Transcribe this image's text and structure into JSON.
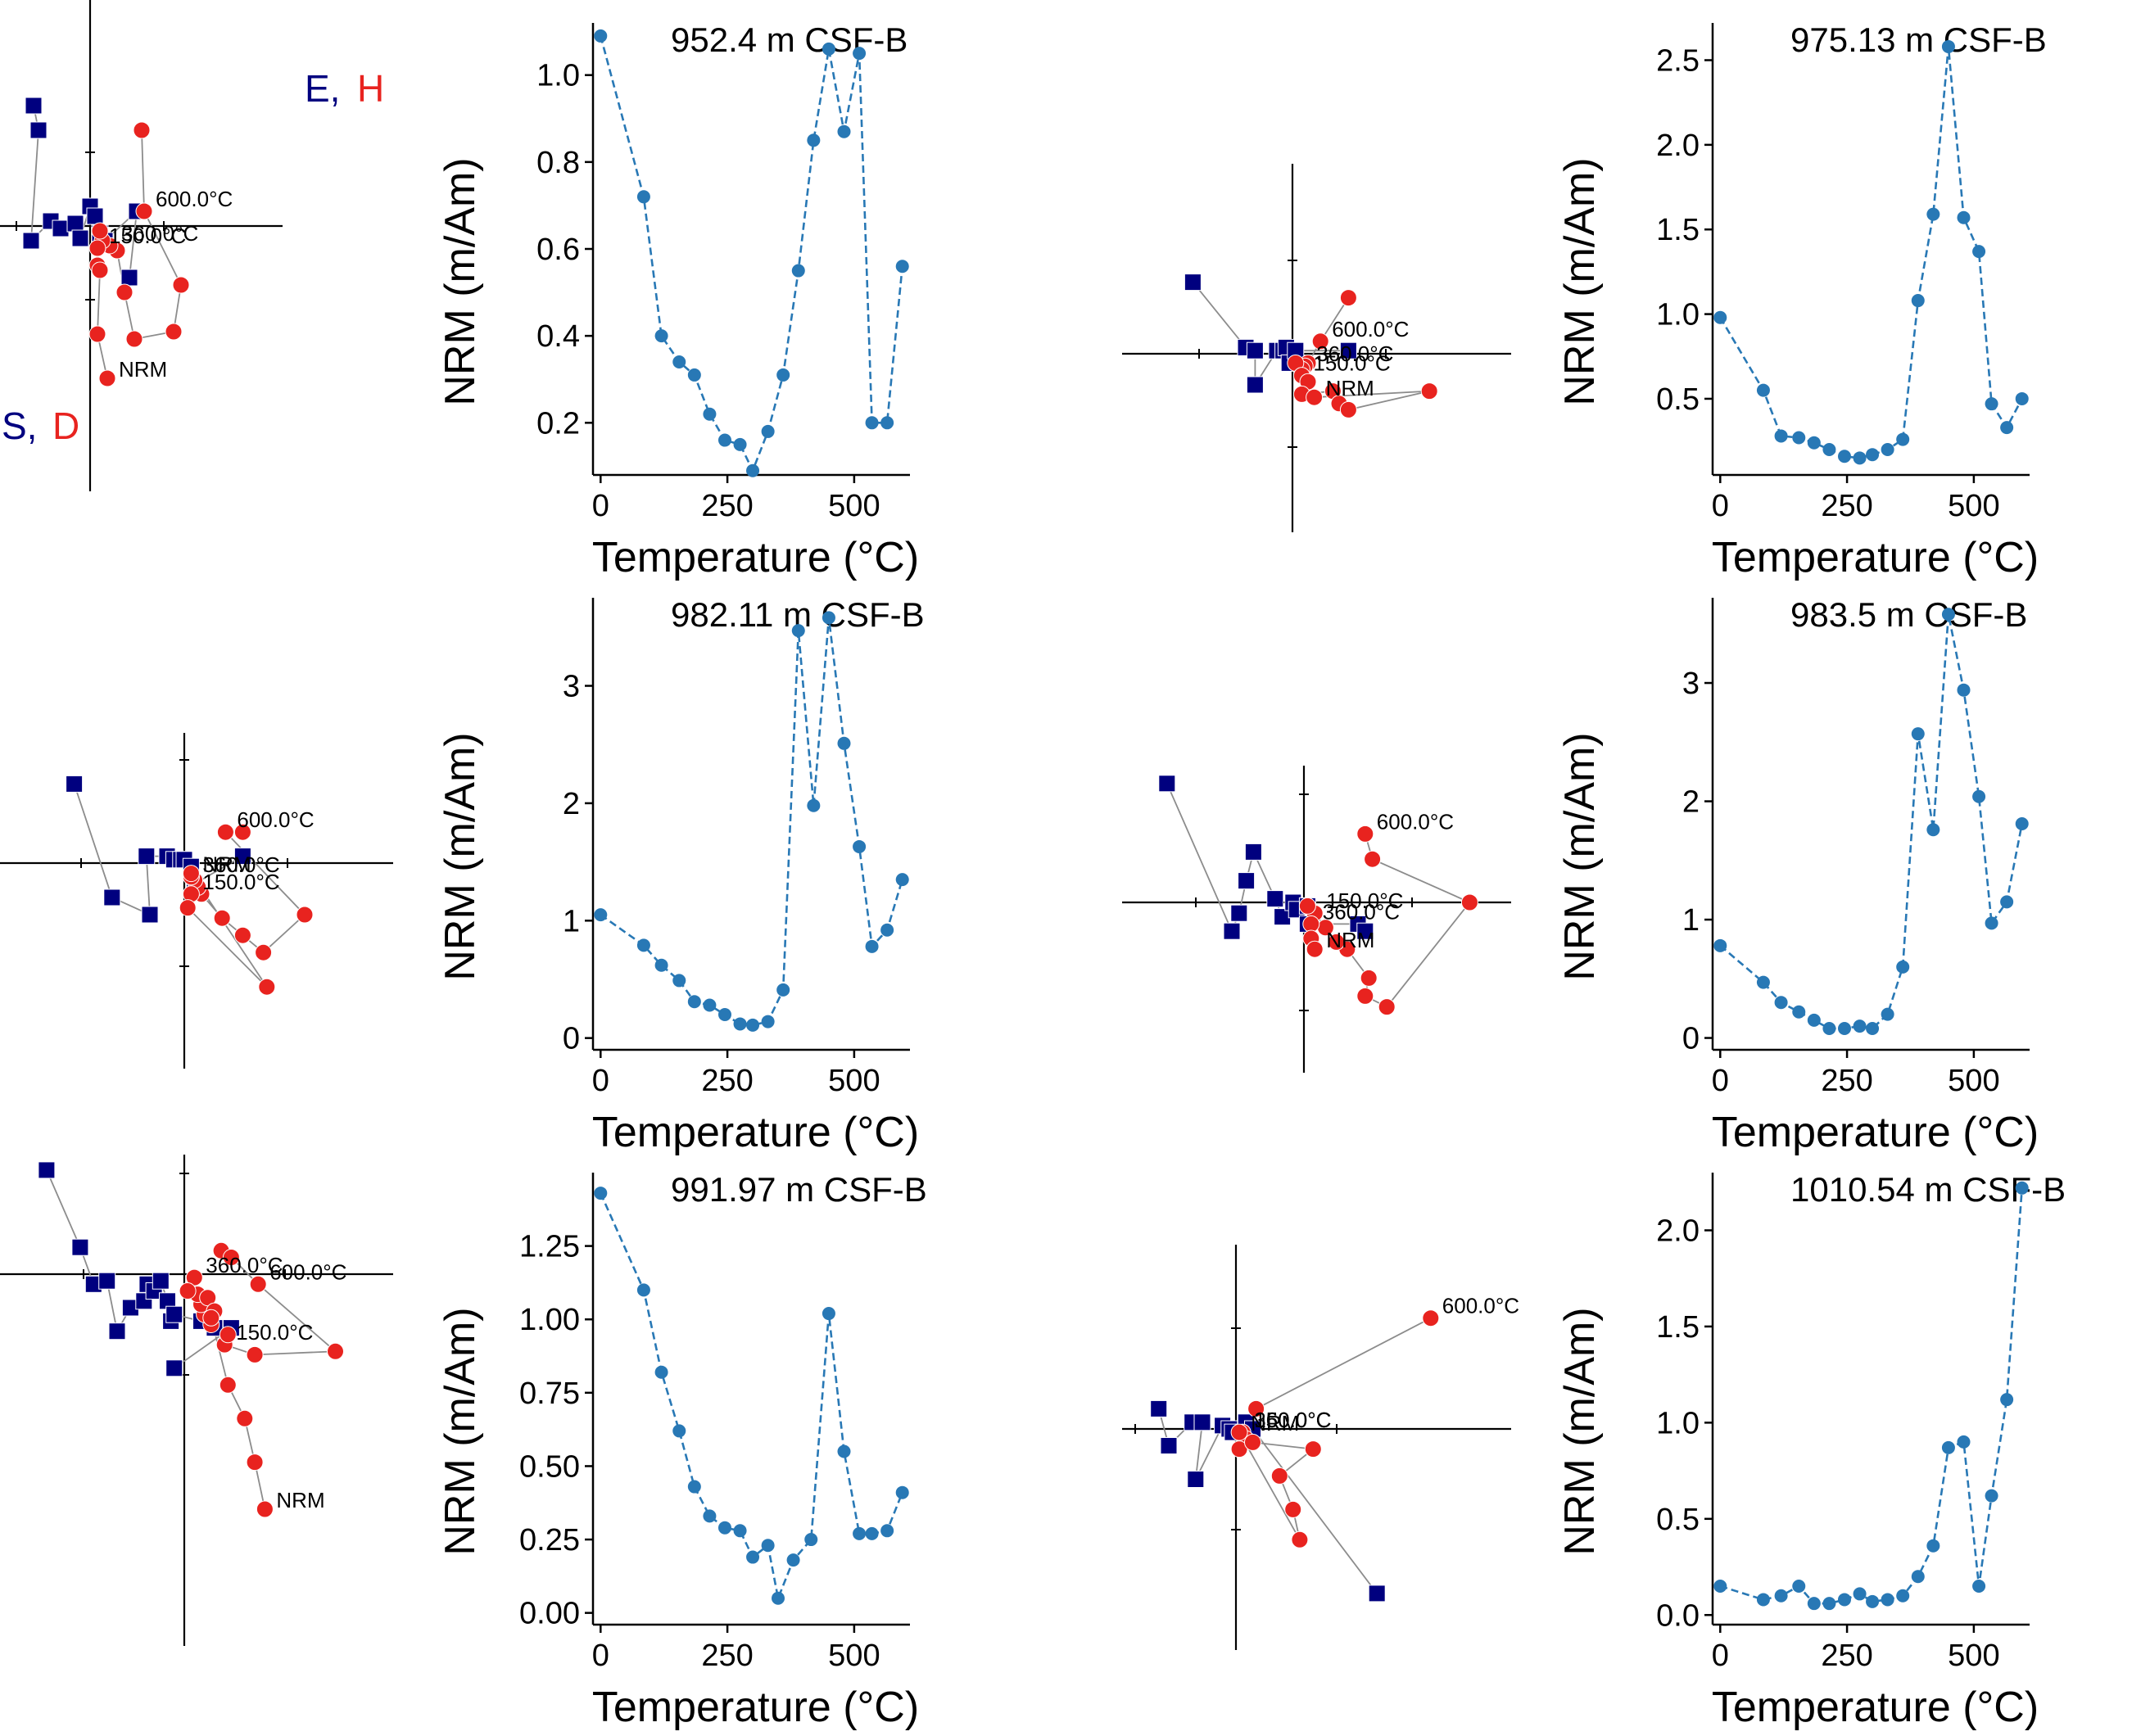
{
  "labels": {
    "xlabel": "Temperature (°C)",
    "ylabel": "NRM (m/Am)",
    "zij_E": "E,",
    "zij_H": "H",
    "zij_S": "S,",
    "zij_D": "D",
    "nrm": "NRM"
  },
  "colors": {
    "line": "#2878b5",
    "horizontal": "#00007f",
    "vertical": "#e8231f",
    "connector": "#8c8c8c"
  },
  "chart_data": [
    {
      "type": "line",
      "title": "952.4 m CSF-B",
      "xlabel": "Temperature (°C)",
      "ylabel": "NRM (m/Am)",
      "x": [
        0,
        85,
        120,
        155,
        185,
        215,
        245,
        275,
        300,
        330,
        360,
        390,
        420,
        450,
        480,
        510,
        535,
        565,
        595
      ],
      "y": [
        1.09,
        0.72,
        0.4,
        0.34,
        0.31,
        0.22,
        0.16,
        0.15,
        0.09,
        0.18,
        0.31,
        0.55,
        0.85,
        1.06,
        0.87,
        1.05,
        0.2,
        0.2,
        0.56
      ],
      "xlim": [
        -15,
        610
      ],
      "ylim": [
        0.08,
        1.12
      ],
      "yticks": [
        0.2,
        0.4,
        0.6,
        0.8,
        1.0
      ],
      "ytick_labels": [
        "0.2",
        "0.4",
        "0.6",
        "0.8",
        "1.0"
      ],
      "xticks": [
        0,
        250,
        500
      ],
      "xtick_labels": [
        "0",
        "250",
        "500"
      ]
    },
    {
      "type": "line",
      "title": "975.13 m CSF-B",
      "xlabel": "Temperature (°C)",
      "ylabel": "NRM (m/Am)",
      "x": [
        0,
        85,
        120,
        155,
        185,
        215,
        245,
        275,
        300,
        330,
        360,
        390,
        420,
        450,
        480,
        510,
        535,
        565,
        595
      ],
      "y": [
        0.98,
        0.55,
        0.28,
        0.27,
        0.24,
        0.2,
        0.16,
        0.15,
        0.17,
        0.2,
        0.26,
        1.08,
        1.59,
        2.58,
        1.57,
        1.37,
        0.47,
        0.33,
        0.5
      ],
      "xlim": [
        -15,
        610
      ],
      "ylim": [
        0.05,
        2.72
      ],
      "yticks": [
        0.5,
        1.0,
        1.5,
        2.0,
        2.5
      ],
      "ytick_labels": [
        "0.5",
        "1.0",
        "1.5",
        "2.0",
        "2.5"
      ],
      "xticks": [
        0,
        250,
        500
      ],
      "xtick_labels": [
        "0",
        "250",
        "500"
      ]
    },
    {
      "type": "line",
      "title": "982.11 m CSF-B",
      "xlabel": "Temperature (°C)",
      "ylabel": "NRM (m/Am)",
      "x": [
        0,
        85,
        120,
        155,
        185,
        215,
        245,
        275,
        300,
        330,
        360,
        390,
        420,
        450,
        480,
        510,
        535,
        565,
        595
      ],
      "y": [
        1.05,
        0.79,
        0.62,
        0.49,
        0.31,
        0.28,
        0.2,
        0.12,
        0.11,
        0.14,
        0.41,
        3.47,
        1.98,
        3.58,
        2.51,
        1.63,
        0.78,
        0.92,
        1.35
      ],
      "xlim": [
        -15,
        610
      ],
      "ylim": [
        -0.1,
        3.75
      ],
      "yticks": [
        0,
        1,
        2,
        3
      ],
      "ytick_labels": [
        "0",
        "1",
        "2",
        "3"
      ],
      "xticks": [
        0,
        250,
        500
      ],
      "xtick_labels": [
        "0",
        "250",
        "500"
      ]
    },
    {
      "type": "line",
      "title": "983.5 m CSF-B",
      "xlabel": "Temperature (°C)",
      "ylabel": "NRM (m/Am)",
      "x": [
        0,
        85,
        120,
        155,
        185,
        215,
        245,
        275,
        300,
        330,
        360,
        390,
        420,
        450,
        480,
        510,
        535,
        565,
        595
      ],
      "y": [
        0.78,
        0.47,
        0.3,
        0.22,
        0.15,
        0.08,
        0.08,
        0.1,
        0.08,
        0.2,
        0.6,
        2.57,
        1.76,
        3.58,
        2.94,
        2.04,
        0.97,
        1.15,
        1.81
      ],
      "xlim": [
        -15,
        610
      ],
      "ylim": [
        -0.1,
        3.72
      ],
      "yticks": [
        0,
        1,
        2,
        3
      ],
      "ytick_labels": [
        "0",
        "1",
        "2",
        "3"
      ],
      "xticks": [
        0,
        250,
        500
      ],
      "xtick_labels": [
        "0",
        "250",
        "500"
      ]
    },
    {
      "type": "line",
      "title": "991.97 m CSF-B",
      "xlabel": "Temperature (°C)",
      "ylabel": "NRM (m/Am)",
      "x": [
        0,
        85,
        120,
        155,
        185,
        215,
        245,
        275,
        300,
        330,
        350,
        380,
        415,
        450,
        480,
        510,
        535,
        565,
        595
      ],
      "y": [
        1.43,
        1.1,
        0.82,
        0.62,
        0.43,
        0.33,
        0.29,
        0.28,
        0.19,
        0.23,
        0.05,
        0.18,
        0.25,
        1.02,
        0.55,
        0.27,
        0.27,
        0.28,
        0.41
      ],
      "xlim": [
        -15,
        610
      ],
      "ylim": [
        -0.04,
        1.5
      ],
      "yticks": [
        0,
        0.25,
        0.5,
        0.75,
        1.0,
        1.25
      ],
      "ytick_labels": [
        "0.00",
        "0.25",
        "0.50",
        "0.75",
        "1.00",
        "1.25"
      ],
      "xticks": [
        0,
        250,
        500
      ],
      "xtick_labels": [
        "0",
        "250",
        "500"
      ]
    },
    {
      "type": "line",
      "title": "1010.54 m CSF-B",
      "xlabel": "Temperature (°C)",
      "ylabel": "NRM (m/Am)",
      "x": [
        0,
        85,
        120,
        155,
        185,
        215,
        245,
        275,
        300,
        330,
        360,
        390,
        420,
        450,
        480,
        510,
        535,
        565,
        595
      ],
      "y": [
        0.15,
        0.08,
        0.1,
        0.15,
        0.06,
        0.06,
        0.08,
        0.11,
        0.07,
        0.08,
        0.1,
        0.2,
        0.36,
        0.87,
        0.9,
        0.15,
        0.62,
        1.12,
        2.22
      ],
      "xlim": [
        -15,
        610
      ],
      "ylim": [
        -0.05,
        2.3
      ],
      "yticks": [
        0,
        0.5,
        1.0,
        1.5,
        2.0
      ],
      "ytick_labels": [
        "0.0",
        "0.5",
        "1.0",
        "1.5",
        "2.0"
      ],
      "xticks": [
        0,
        250,
        500
      ],
      "xtick_labels": [
        "0",
        "250",
        "500"
      ]
    }
  ],
  "zijderveld": [
    {
      "horizontal": [
        [
          -2.3,
          4.9
        ],
        [
          -2.1,
          3.9
        ],
        [
          -2.4,
          -0.6
        ],
        [
          -1.6,
          0.2
        ],
        [
          -1.2,
          -0.1
        ],
        [
          -0.6,
          0.1
        ],
        [
          -0.4,
          -0.5
        ],
        [
          0,
          0.8
        ],
        [
          0.2,
          0.4
        ],
        [
          0.4,
          -0.3
        ],
        [
          0.6,
          -0.6
        ],
        [
          1.9,
          0.6
        ],
        [
          1.6,
          -2.1
        ]
      ],
      "vertical": [
        [
          2.1,
          3.9
        ],
        [
          2.2,
          0.6
        ],
        [
          3.7,
          -2.4
        ],
        [
          3.4,
          -4.3
        ],
        [
          1.8,
          -4.6
        ],
        [
          1.4,
          -2.7
        ],
        [
          1.1,
          -1.0
        ],
        [
          0.8,
          -0.8
        ],
        [
          0.5,
          -0.6
        ],
        [
          0.4,
          -0.2
        ],
        [
          0.3,
          -0.9
        ],
        [
          0.3,
          -1.6
        ],
        [
          0.4,
          -1.8
        ],
        [
          0.3,
          -4.4
        ],
        [
          0.7,
          -6.2
        ]
      ],
      "temp_labels": [
        {
          "text": "600.0°C",
          "at": 1
        },
        {
          "text": "360.0°C",
          "at": 7
        },
        {
          "text": "150.0°C",
          "at": 10
        }
      ],
      "show_ehsd": true
    },
    {
      "horizontal": [
        [
          -3.2,
          2.3
        ],
        [
          -1.5,
          0.2
        ],
        [
          -1.2,
          0.1
        ],
        [
          -1.2,
          -1.0
        ],
        [
          -0.5,
          0.1
        ],
        [
          -0.3,
          0.1
        ],
        [
          -0.2,
          0.2
        ],
        [
          -0.1,
          -0.3
        ],
        [
          0.1,
          0.1
        ],
        [
          1.8,
          0.1
        ]
      ],
      "vertical": [
        [
          1.8,
          1.8
        ],
        [
          0.9,
          0.4
        ],
        [
          0.5,
          -0.3
        ],
        [
          0.4,
          -0.4
        ],
        [
          0.3,
          -0.5
        ],
        [
          0.1,
          -0.3
        ],
        [
          0.3,
          -0.7
        ],
        [
          0.5,
          -0.9
        ],
        [
          0.3,
          -1.3
        ],
        [
          1.3,
          -1.2
        ],
        [
          1.5,
          -1.6
        ],
        [
          1.8,
          -1.8
        ],
        [
          4.4,
          -1.2
        ],
        [
          0.7,
          -1.4
        ]
      ],
      "temp_labels": [
        {
          "text": "600.0°C",
          "at": 1
        },
        {
          "text": "360.0°C",
          "at": 3
        },
        {
          "text": "150.0°C",
          "at": 6
        }
      ],
      "show_ehsd": false
    },
    {
      "horizontal": [
        [
          -3.2,
          2.3
        ],
        [
          -2.1,
          -1.0
        ],
        [
          -1.0,
          -1.5
        ],
        [
          -1.1,
          0.2
        ],
        [
          -0.5,
          0.2
        ],
        [
          -0.3,
          0.1
        ],
        [
          -0.1,
          0.1
        ],
        [
          0,
          0.1
        ],
        [
          0.2,
          -0.1
        ],
        [
          0.3,
          -0.6
        ],
        [
          1.7,
          0.2
        ]
      ],
      "vertical": [
        [
          1.7,
          0.9
        ],
        [
          1.2,
          0.9
        ],
        [
          3.5,
          -1.5
        ],
        [
          2.3,
          -2.6
        ],
        [
          1.7,
          -2.1
        ],
        [
          1.1,
          -1.6
        ],
        [
          0.5,
          -0.9
        ],
        [
          0.4,
          -0.7
        ],
        [
          0.3,
          -0.5
        ],
        [
          0.2,
          -0.4
        ],
        [
          0.2,
          -0.9
        ],
        [
          0.1,
          -1.3
        ],
        [
          2.4,
          -3.6
        ],
        [
          0.2,
          -0.3
        ]
      ],
      "temp_labels": [
        {
          "text": "600.0°C",
          "at": 1
        },
        {
          "text": "360.0°C",
          "at": 9
        },
        {
          "text": "150.0°C",
          "at": 10
        }
      ],
      "show_ehsd": false
    },
    {
      "horizontal": [
        [
          -3.8,
          3.3
        ],
        [
          -2.0,
          -0.8
        ],
        [
          -1.8,
          -0.3
        ],
        [
          -1.6,
          0.6
        ],
        [
          -1.4,
          1.4
        ],
        [
          -0.8,
          0.1
        ],
        [
          -0.6,
          -0.4
        ],
        [
          -0.3,
          0
        ],
        [
          -0.2,
          -0.2
        ],
        [
          0.1,
          -0.1
        ],
        [
          0.1,
          -0.6
        ],
        [
          1.5,
          -0.6
        ],
        [
          1.7,
          -0.8
        ]
      ],
      "vertical": [
        [
          1.7,
          1.9
        ],
        [
          1.9,
          1.2
        ],
        [
          4.6,
          0
        ],
        [
          2.3,
          -2.9
        ],
        [
          1.7,
          -2.6
        ],
        [
          1.8,
          -2.1
        ],
        [
          1.2,
          -1.3
        ],
        [
          0.9,
          -1.1
        ],
        [
          0.6,
          -0.7
        ],
        [
          0.3,
          -0.3
        ],
        [
          0.1,
          -0.1
        ],
        [
          0.2,
          -0.6
        ],
        [
          0.2,
          -1.0
        ],
        [
          0.3,
          -1.3
        ]
      ],
      "temp_labels": [
        {
          "text": "600.0°C",
          "at": 0
        },
        {
          "text": "150.0°C",
          "at": 9
        },
        {
          "text": "360.0°C",
          "at": 11
        }
      ],
      "show_ehsd": false
    },
    {
      "horizontal": [
        [
          -4.1,
          3.1
        ],
        [
          -3.1,
          0.8
        ],
        [
          -2.7,
          -0.3
        ],
        [
          -2.3,
          -0.2
        ],
        [
          -2.0,
          -1.7
        ],
        [
          -1.6,
          -1.0
        ],
        [
          -1.2,
          -0.8
        ],
        [
          -1.1,
          -0.3
        ],
        [
          -0.9,
          -0.5
        ],
        [
          -0.7,
          -0.2
        ],
        [
          -0.5,
          -0.8
        ],
        [
          -0.4,
          -1.4
        ],
        [
          -0.3,
          -1.2
        ],
        [
          0.5,
          -1.4
        ],
        [
          0.9,
          -1.6
        ],
        [
          1.4,
          -1.6
        ],
        [
          -0.3,
          -2.8
        ]
      ],
      "vertical": [
        [
          1.1,
          0.7
        ],
        [
          1.4,
          0.5
        ],
        [
          2.2,
          -0.3
        ],
        [
          4.5,
          -2.3
        ],
        [
          2.1,
          -2.4
        ],
        [
          1.2,
          -2.1
        ],
        [
          1.3,
          -1.8
        ],
        [
          0.8,
          -1.5
        ],
        [
          0.6,
          -1.2
        ],
        [
          0.5,
          -0.9
        ],
        [
          0.4,
          -0.6
        ],
        [
          0.3,
          -0.1
        ],
        [
          0.1,
          -0.5
        ],
        [
          0.7,
          -0.7
        ],
        [
          0.9,
          -1.1
        ],
        [
          0.8,
          -1.3
        ],
        [
          1.3,
          -3.3
        ],
        [
          1.8,
          -4.3
        ],
        [
          2.1,
          -5.6
        ],
        [
          2.4,
          -7.0
        ]
      ],
      "temp_labels": [
        {
          "text": "360.0°C",
          "at": 11
        },
        {
          "text": "600.0°C",
          "at": 2
        },
        {
          "text": "150.0°C",
          "at": 5
        }
      ],
      "show_ehsd": false
    },
    {
      "horizontal": [
        [
          -2.3,
          0.6
        ],
        [
          -2.0,
          -0.5
        ],
        [
          -1.3,
          0.2
        ],
        [
          -1.0,
          0.2
        ],
        [
          -1.2,
          -1.5
        ],
        [
          -0.4,
          0.1
        ],
        [
          -0.2,
          0
        ],
        [
          -0.1,
          -0.1
        ],
        [
          0.3,
          0.2
        ],
        [
          0.5,
          0
        ],
        [
          4.2,
          -4.9
        ]
      ],
      "vertical": [
        [
          5.8,
          3.3
        ],
        [
          0.6,
          0.6
        ],
        [
          0.2,
          -0.1
        ],
        [
          0.3,
          -0.3
        ],
        [
          0.1,
          -0.6
        ],
        [
          0.5,
          -0.4
        ],
        [
          2.3,
          -0.6
        ],
        [
          1.3,
          -1.4
        ],
        [
          1.7,
          -2.4
        ],
        [
          1.9,
          -3.3
        ],
        [
          0.1,
          -0.1
        ]
      ],
      "temp_labels": [
        {
          "text": "600.0°C",
          "at": 0
        },
        {
          "text": "360.0°C",
          "at": 2
        },
        {
          "text": "150.0°C",
          "at": 2
        }
      ],
      "show_ehsd": false
    }
  ]
}
